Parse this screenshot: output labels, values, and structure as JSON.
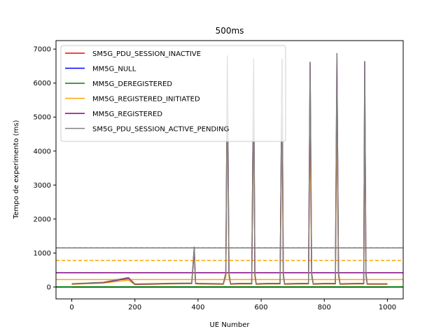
{
  "chart_data": {
    "type": "line",
    "title": "500ms",
    "xlabel": "UE Number",
    "ylabel": "Tempo de experimento (ms)",
    "xlim": [
      -50,
      1050
    ],
    "ylim": [
      -350,
      7250
    ],
    "xticks": [
      0,
      200,
      400,
      600,
      800,
      1000
    ],
    "yticks": [
      0,
      1000,
      2000,
      3000,
      4000,
      5000,
      6000,
      7000
    ],
    "grid": false,
    "legend_position": "top-left",
    "series": [
      {
        "name": "SM5G_PDU_SESSION_INACTIVE",
        "color": "#ff0000",
        "mean_line": 0,
        "x": [
          0,
          1000
        ],
        "y": [
          0,
          0
        ]
      },
      {
        "name": "MM5G_NULL",
        "color": "#0000ff",
        "mean_line": 0,
        "x": [
          0,
          1000
        ],
        "y": [
          0,
          0
        ]
      },
      {
        "name": "MM5G_DEREGISTERED",
        "color": "#008000",
        "mean_line": 5,
        "x": [
          0,
          1000
        ],
        "y": [
          5,
          5
        ]
      },
      {
        "name": "MM5G_REGISTERED_INITIATED",
        "color": "#ffa500",
        "mean_line": 220,
        "threshold_line": 780,
        "x": [
          0,
          100,
          180,
          200,
          300,
          380,
          388,
          392,
          400,
          480,
          488,
          493,
          498,
          503,
          530,
          570,
          576,
          580,
          584,
          620,
          660,
          666,
          670,
          674,
          720,
          750,
          755,
          760,
          765,
          800,
          835,
          840,
          845,
          850,
          900,
          925,
          928,
          932,
          936,
          1000
        ],
        "y": [
          80,
          120,
          200,
          70,
          90,
          100,
          1000,
          100,
          90,
          80,
          300,
          5500,
          300,
          80,
          90,
          90,
          5000,
          300,
          80,
          90,
          90,
          4900,
          300,
          80,
          90,
          90,
          4800,
          300,
          80,
          90,
          90,
          5000,
          300,
          80,
          90,
          90,
          4900,
          300,
          80,
          80
        ]
      },
      {
        "name": "MM5G_REGISTERED",
        "color": "#800080",
        "mean_line": 420,
        "x": [
          0,
          100,
          180,
          200,
          300,
          380,
          388,
          392,
          400,
          480,
          488,
          493,
          498,
          503,
          530,
          570,
          576,
          580,
          584,
          620,
          660,
          666,
          670,
          674,
          720,
          750,
          755,
          760,
          765,
          800,
          835,
          840,
          845,
          850,
          900,
          925,
          928,
          932,
          936,
          1000
        ],
        "y": [
          90,
          130,
          260,
          80,
          100,
          110,
          1150,
          110,
          100,
          90,
          400,
          6750,
          400,
          90,
          100,
          100,
          6700,
          400,
          90,
          100,
          100,
          6700,
          400,
          90,
          100,
          100,
          6600,
          400,
          90,
          100,
          100,
          6850,
          400,
          90,
          100,
          100,
          6620,
          400,
          90,
          90
        ]
      },
      {
        "name": "SM5G_PDU_SESSION_ACTIVE_PENDING",
        "color": "#808080",
        "mean_line": 1150,
        "x": [
          0,
          100,
          180,
          200,
          300,
          380,
          388,
          392,
          400,
          480,
          488,
          493,
          498,
          503,
          530,
          570,
          576,
          580,
          584,
          620,
          660,
          666,
          670,
          674,
          720,
          750,
          755,
          760,
          765,
          800,
          835,
          840,
          845,
          850,
          900,
          925,
          928,
          932,
          936,
          1000
        ],
        "y": [
          100,
          140,
          280,
          90,
          110,
          120,
          1180,
          120,
          110,
          100,
          420,
          6800,
          420,
          100,
          110,
          110,
          6720,
          420,
          100,
          110,
          110,
          6710,
          420,
          100,
          110,
          110,
          6620,
          420,
          100,
          110,
          110,
          6870,
          420,
          100,
          110,
          110,
          6640,
          420,
          100,
          100
        ]
      }
    ]
  }
}
